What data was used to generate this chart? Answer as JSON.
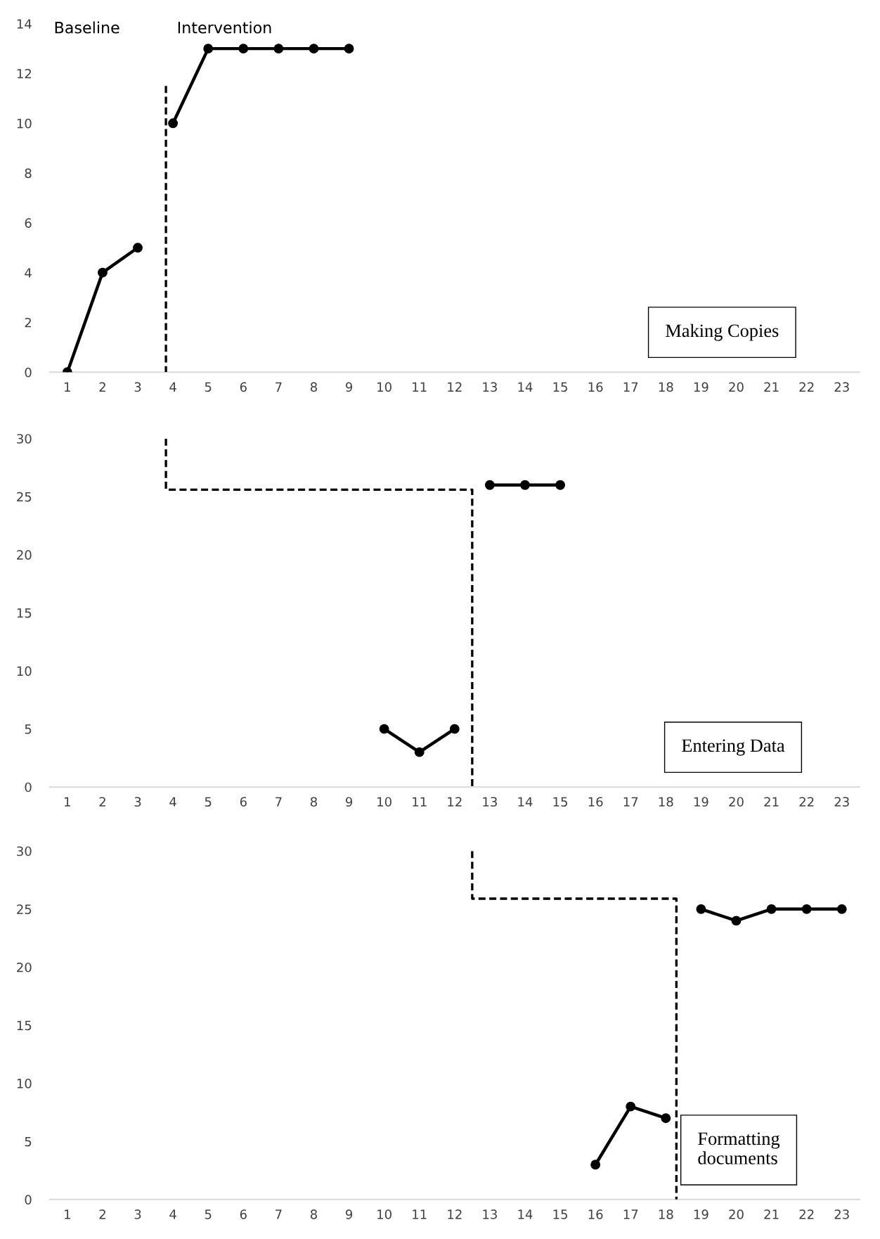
{
  "chart_data": [
    {
      "type": "line",
      "xlim": [
        0.5,
        23.5
      ],
      "xticks": [
        1,
        2,
        3,
        4,
        5,
        6,
        7,
        8,
        9,
        10,
        11,
        12,
        13,
        14,
        15,
        16,
        17,
        18,
        19,
        20,
        21,
        22,
        23
      ],
      "ylim": [
        0,
        14
      ],
      "yticks": [
        0,
        2,
        4,
        6,
        8,
        10,
        12,
        14
      ],
      "annotations": [
        "Baseline",
        "Intervention",
        "Making Copies"
      ],
      "series": [
        {
          "x": [
            1,
            2,
            3
          ],
          "values": [
            0,
            4,
            5
          ],
          "color": "#000000",
          "marker": "circle",
          "line_style": "solid"
        },
        {
          "x": [
            4,
            5,
            6,
            7,
            8,
            9
          ],
          "values": [
            10,
            13,
            13,
            13,
            13,
            13
          ],
          "color": "#000000",
          "marker": "circle",
          "line_style": "solid"
        },
        {
          "x": [
            3.8,
            3.8
          ],
          "values": [
            11.5,
            0
          ],
          "color": "#000000",
          "marker": "none",
          "line_style": "dashed"
        }
      ]
    },
    {
      "type": "line",
      "xlim": [
        0.5,
        23.5
      ],
      "xticks": [
        1,
        2,
        3,
        4,
        5,
        6,
        7,
        8,
        9,
        10,
        11,
        12,
        13,
        14,
        15,
        16,
        17,
        18,
        19,
        20,
        21,
        22,
        23
      ],
      "ylim": [
        0,
        30
      ],
      "yticks": [
        0,
        5,
        10,
        15,
        20,
        25,
        30
      ],
      "annotations": [
        "Entering Data"
      ],
      "series": [
        {
          "x": [
            10,
            11,
            12
          ],
          "values": [
            5,
            3,
            5
          ],
          "color": "#000000",
          "marker": "circle",
          "line_style": "solid"
        },
        {
          "x": [
            13,
            14,
            15
          ],
          "values": [
            26,
            26,
            26
          ],
          "color": "#000000",
          "marker": "circle",
          "line_style": "solid"
        },
        {
          "x": [
            3.8,
            3.8,
            12.5,
            12.5
          ],
          "values": [
            30,
            25.6,
            25.6,
            0
          ],
          "color": "#000000",
          "marker": "none",
          "line_style": "dashed"
        }
      ]
    },
    {
      "type": "line",
      "xlim": [
        0.5,
        23.5
      ],
      "xticks": [
        1,
        2,
        3,
        4,
        5,
        6,
        7,
        8,
        9,
        10,
        11,
        12,
        13,
        14,
        15,
        16,
        17,
        18,
        19,
        20,
        21,
        22,
        23
      ],
      "ylim": [
        0,
        30
      ],
      "yticks": [
        0,
        5,
        10,
        15,
        20,
        25,
        30
      ],
      "annotations": [
        "Formatting\ndocuments"
      ],
      "series": [
        {
          "x": [
            16,
            17,
            18
          ],
          "values": [
            3,
            8,
            7
          ],
          "color": "#000000",
          "marker": "circle",
          "line_style": "solid"
        },
        {
          "x": [
            19,
            20,
            21,
            22,
            23
          ],
          "values": [
            25,
            24,
            25,
            25,
            25
          ],
          "color": "#000000",
          "marker": "circle",
          "line_style": "solid"
        },
        {
          "x": [
            12.5,
            12.5,
            18.3,
            18.3
          ],
          "values": [
            30,
            25.9,
            25.9,
            0
          ],
          "color": "#000000",
          "marker": "none",
          "line_style": "dashed"
        }
      ]
    }
  ]
}
